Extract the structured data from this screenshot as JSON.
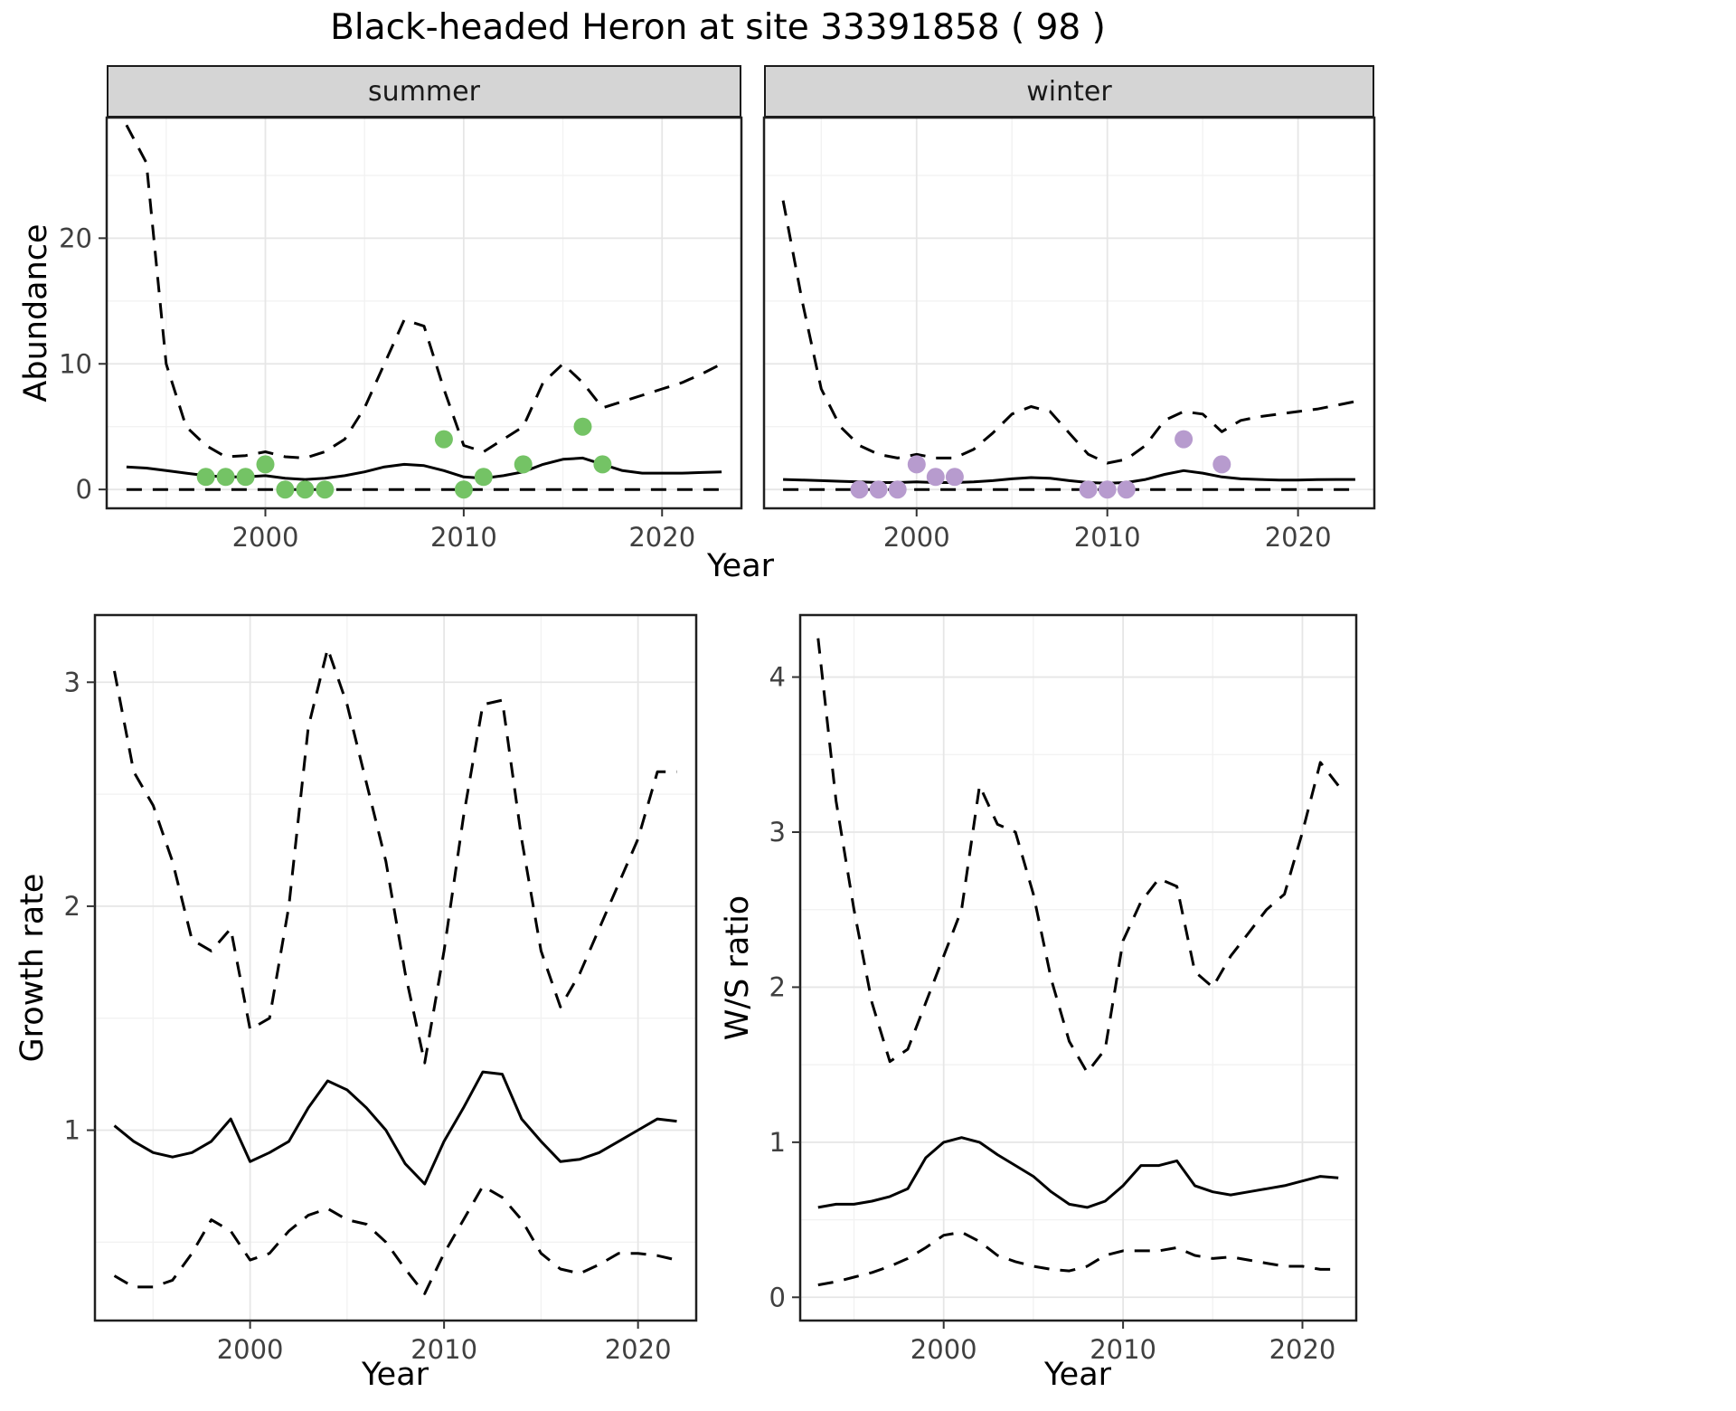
{
  "title": "Black-headed Heron at site 33391858 ( 98 )",
  "facets": {
    "summer": "summer",
    "winter": "winter"
  },
  "axis_titles": {
    "abundance": "Abundance",
    "year": "Year",
    "growth_rate": "Growth rate",
    "ws_ratio": "W/S ratio"
  },
  "theme": {
    "summer_point_color": "#74c365",
    "winter_point_color": "#b79bce",
    "line_color": "#000000",
    "panel_bg": "#ffffff",
    "panel_border": "#1f1f1f",
    "grid_major": "#e6e6e6",
    "grid_minor": "#f2f2f2",
    "strip_bg": "#d5d5d5",
    "tick_color": "#333333",
    "tick_label_color": "#404040"
  },
  "chart_data": [
    {
      "id": "abundance-summer",
      "type": "line",
      "facet": "summer",
      "xlabel": "Year",
      "ylabel": "Abundance",
      "xlim": [
        1992,
        2024
      ],
      "ylim": [
        -1.5,
        29.6
      ],
      "x_ticks": [
        2000,
        2010,
        2020
      ],
      "x_minor": [
        1995,
        2005,
        2015
      ],
      "y_ticks": [
        0,
        10,
        20
      ],
      "y_minor": [
        5,
        15,
        25
      ],
      "grid": true,
      "legend": "none",
      "x": [
        1993,
        1994,
        1995,
        1996,
        1997,
        1998,
        1999,
        2000,
        2001,
        2002,
        2003,
        2004,
        2005,
        2006,
        2007,
        2008,
        2009,
        2010,
        2011,
        2012,
        2013,
        2014,
        2015,
        2016,
        2017,
        2018,
        2019,
        2020,
        2021,
        2022,
        2023
      ],
      "series": [
        {
          "name": "upper-ci",
          "style": "dashed",
          "values": [
            29,
            26,
            10,
            5,
            3.5,
            2.6,
            2.7,
            3,
            2.6,
            2.5,
            3,
            4,
            6.5,
            10,
            13.5,
            13,
            8,
            3.5,
            3,
            4,
            5,
            8.5,
            10,
            8.5,
            6.5,
            7,
            7.5,
            8,
            8.5,
            9.2,
            10
          ]
        },
        {
          "name": "mean",
          "style": "solid",
          "values": [
            1.8,
            1.7,
            1.5,
            1.3,
            1.1,
            1.0,
            1.0,
            1.1,
            0.9,
            0.8,
            0.9,
            1.1,
            1.4,
            1.8,
            2.0,
            1.9,
            1.5,
            1.0,
            0.9,
            1.1,
            1.4,
            2.0,
            2.4,
            2.5,
            2.0,
            1.5,
            1.3,
            1.3,
            1.3,
            1.35,
            1.4
          ]
        },
        {
          "name": "lower-ci",
          "style": "dashed",
          "values": [
            0,
            0,
            0,
            0,
            0,
            0,
            0,
            0,
            0,
            0,
            0,
            0,
            0,
            0,
            0,
            0,
            0,
            0,
            0,
            0,
            0,
            0,
            0,
            0,
            0,
            0,
            0,
            0,
            0,
            0,
            0
          ]
        }
      ],
      "points": {
        "name": "summer-observations",
        "color": "#74c365",
        "x": [
          1997,
          1998,
          1999,
          2000,
          2001,
          2002,
          2003,
          2009,
          2010,
          2011,
          2013,
          2016,
          2017
        ],
        "y": [
          1,
          1,
          1,
          2,
          0,
          0,
          0,
          4,
          0,
          1,
          2,
          5,
          2
        ]
      }
    },
    {
      "id": "abundance-winter",
      "type": "line",
      "facet": "winter",
      "xlabel": "Year",
      "ylabel": "Abundance",
      "xlim": [
        1992,
        2024
      ],
      "ylim": [
        -1.5,
        29.6
      ],
      "x_ticks": [
        2000,
        2010,
        2020
      ],
      "x_minor": [
        1995,
        2005,
        2015
      ],
      "y_ticks": [
        0,
        10,
        20
      ],
      "y_minor": [
        5,
        15,
        25
      ],
      "grid": true,
      "legend": "none",
      "x": [
        1993,
        1994,
        1995,
        1996,
        1997,
        1998,
        1999,
        2000,
        2001,
        2002,
        2003,
        2004,
        2005,
        2006,
        2007,
        2008,
        2009,
        2010,
        2011,
        2012,
        2013,
        2014,
        2015,
        2016,
        2017,
        2018,
        2019,
        2020,
        2021,
        2022,
        2023
      ],
      "series": [
        {
          "name": "upper-ci",
          "style": "dashed",
          "values": [
            23,
            15,
            8,
            5,
            3.5,
            2.8,
            2.5,
            2.8,
            2.5,
            2.5,
            3.2,
            4.5,
            6.0,
            6.6,
            6.2,
            4.5,
            2.8,
            2.1,
            2.4,
            3.5,
            5.5,
            6.2,
            6.0,
            4.6,
            5.5,
            5.8,
            6.0,
            6.2,
            6.4,
            6.7,
            7.0
          ]
        },
        {
          "name": "mean",
          "style": "solid",
          "values": [
            0.8,
            0.75,
            0.7,
            0.65,
            0.6,
            0.55,
            0.55,
            0.6,
            0.55,
            0.55,
            0.6,
            0.7,
            0.85,
            0.95,
            0.9,
            0.7,
            0.55,
            0.5,
            0.55,
            0.8,
            1.2,
            1.5,
            1.3,
            1.0,
            0.85,
            0.8,
            0.75,
            0.75,
            0.78,
            0.8,
            0.8
          ]
        },
        {
          "name": "lower-ci",
          "style": "dashed",
          "values": [
            0,
            0,
            0,
            0,
            0,
            0,
            0,
            0,
            0,
            0,
            0,
            0,
            0,
            0,
            0,
            0,
            0,
            0,
            0,
            0,
            0,
            0,
            0,
            0,
            0,
            0,
            0,
            0,
            0,
            0,
            0
          ]
        }
      ],
      "points": {
        "name": "winter-observations",
        "color": "#b79bce",
        "x": [
          1997,
          1998,
          1999,
          2000,
          2001,
          2002,
          2009,
          2010,
          2011,
          2014,
          2016
        ],
        "y": [
          0,
          0,
          0,
          2,
          1,
          1,
          0,
          0,
          0,
          4,
          2
        ]
      }
    },
    {
      "id": "growth-rate",
      "type": "line",
      "xlabel": "Year",
      "ylabel": "Growth rate",
      "xlim": [
        1992,
        2023
      ],
      "ylim": [
        0.15,
        3.3
      ],
      "x_ticks": [
        2000,
        2010,
        2020
      ],
      "x_minor": [
        1995,
        2005,
        2015
      ],
      "y_ticks": [
        1,
        2,
        3
      ],
      "y_minor": [
        0.5,
        1.5,
        2.5
      ],
      "grid": true,
      "legend": "none",
      "x": [
        1993,
        1994,
        1995,
        1996,
        1997,
        1998,
        1999,
        2000,
        2001,
        2002,
        2003,
        2004,
        2005,
        2006,
        2007,
        2008,
        2009,
        2010,
        2011,
        2012,
        2013,
        2014,
        2015,
        2016,
        2017,
        2018,
        2019,
        2020,
        2021,
        2022
      ],
      "series": [
        {
          "name": "upper-ci",
          "style": "dashed",
          "values": [
            3.05,
            2.6,
            2.45,
            2.2,
            1.85,
            1.8,
            1.9,
            1.45,
            1.5,
            2.0,
            2.8,
            3.15,
            2.9,
            2.55,
            2.2,
            1.7,
            1.3,
            1.8,
            2.4,
            2.9,
            2.92,
            2.3,
            1.8,
            1.55,
            1.7,
            1.9,
            2.1,
            2.3,
            2.6,
            2.6
          ]
        },
        {
          "name": "mean",
          "style": "solid",
          "values": [
            1.02,
            0.95,
            0.9,
            0.88,
            0.9,
            0.95,
            1.05,
            0.86,
            0.9,
            0.95,
            1.1,
            1.22,
            1.18,
            1.1,
            1.0,
            0.85,
            0.76,
            0.95,
            1.1,
            1.26,
            1.25,
            1.05,
            0.95,
            0.86,
            0.87,
            0.9,
            0.95,
            1.0,
            1.05,
            1.04
          ]
        },
        {
          "name": "lower-ci",
          "style": "dashed",
          "values": [
            0.35,
            0.3,
            0.3,
            0.33,
            0.45,
            0.6,
            0.55,
            0.42,
            0.45,
            0.55,
            0.62,
            0.65,
            0.6,
            0.58,
            0.5,
            0.38,
            0.27,
            0.45,
            0.6,
            0.75,
            0.7,
            0.6,
            0.45,
            0.38,
            0.36,
            0.4,
            0.45,
            0.45,
            0.44,
            0.42
          ]
        }
      ]
    },
    {
      "id": "ws-ratio",
      "type": "line",
      "xlabel": "Year",
      "ylabel": "W/S ratio",
      "xlim": [
        1992,
        2023
      ],
      "ylim": [
        -0.15,
        4.4
      ],
      "x_ticks": [
        2000,
        2010,
        2020
      ],
      "x_minor": [
        1995,
        2005,
        2015
      ],
      "y_ticks": [
        0,
        1,
        2,
        3,
        4
      ],
      "y_minor": [
        0.5,
        1.5,
        2.5,
        3.5
      ],
      "grid": true,
      "legend": "none",
      "x": [
        1993,
        1994,
        1995,
        1996,
        1997,
        1998,
        1999,
        2000,
        2001,
        2002,
        2003,
        2004,
        2005,
        2006,
        2007,
        2008,
        2009,
        2010,
        2011,
        2012,
        2013,
        2014,
        2015,
        2016,
        2017,
        2018,
        2019,
        2020,
        2021,
        2022
      ],
      "series": [
        {
          "name": "upper-ci",
          "style": "dashed",
          "values": [
            4.25,
            3.2,
            2.5,
            1.9,
            1.52,
            1.6,
            1.9,
            2.2,
            2.5,
            3.3,
            3.05,
            3.0,
            2.6,
            2.05,
            1.65,
            1.45,
            1.6,
            2.3,
            2.55,
            2.7,
            2.65,
            2.1,
            2.0,
            2.2,
            2.35,
            2.5,
            2.6,
            3.0,
            3.45,
            3.3
          ]
        },
        {
          "name": "mean",
          "style": "solid",
          "values": [
            0.58,
            0.6,
            0.6,
            0.62,
            0.65,
            0.7,
            0.9,
            1.0,
            1.03,
            1.0,
            0.92,
            0.85,
            0.78,
            0.68,
            0.6,
            0.58,
            0.62,
            0.72,
            0.85,
            0.85,
            0.88,
            0.72,
            0.68,
            0.66,
            0.68,
            0.7,
            0.72,
            0.75,
            0.78,
            0.77
          ]
        },
        {
          "name": "lower-ci",
          "style": "dashed",
          "values": [
            0.08,
            0.1,
            0.13,
            0.16,
            0.2,
            0.25,
            0.32,
            0.4,
            0.42,
            0.36,
            0.27,
            0.23,
            0.2,
            0.18,
            0.17,
            0.2,
            0.27,
            0.3,
            0.3,
            0.3,
            0.32,
            0.27,
            0.25,
            0.26,
            0.24,
            0.22,
            0.2,
            0.2,
            0.18,
            0.18
          ]
        }
      ]
    }
  ]
}
